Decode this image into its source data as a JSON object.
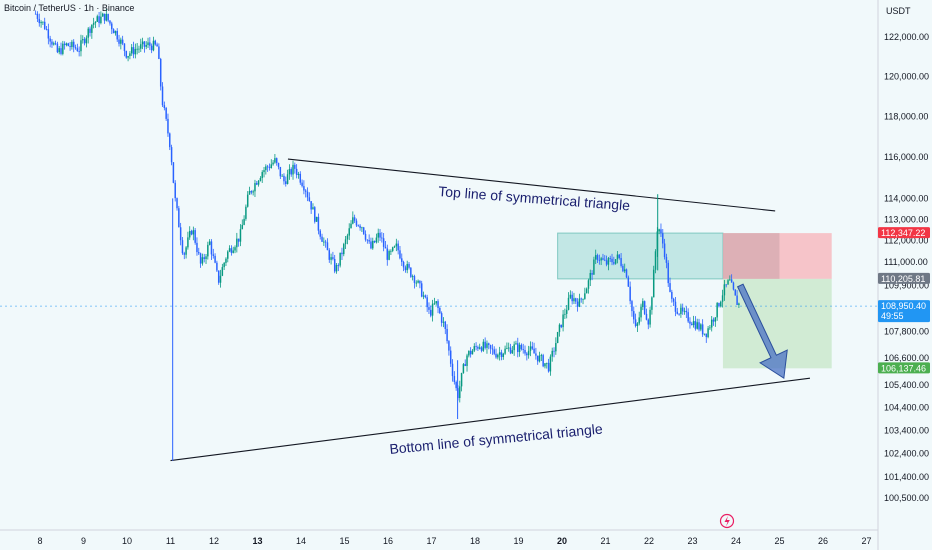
{
  "header": {
    "title": "Bitcoin / TetherUS · 1h · Binance",
    "currency": "USDT"
  },
  "badges": {
    "stop": "112,347.22",
    "entry": "110,205.81",
    "last": "108,950.40",
    "countdown": "49:55",
    "target": "106,137.46"
  },
  "annotations": {
    "top_line": "Top line of symmetrical triangle",
    "bottom_line": "Bottom line of symmetrical triangle"
  },
  "colors": {
    "up": "#089981",
    "down": "#2962ff",
    "wick_up": "#1e88e5",
    "bg": "#f1f9fb",
    "stop_zone": "#f7b6bd",
    "target_zone": "#c5e6c7",
    "entry_zone": "#b2e0de",
    "badge_red": "#f23645",
    "badge_gray": "#6f7885",
    "badge_blue": "#2196f3",
    "badge_green": "#4caf50",
    "arrow": "#4a72c4"
  },
  "chart_data": {
    "type": "candlestick",
    "title": "Bitcoin / TetherUS · 1h · Binance",
    "xlabel": "",
    "ylabel": "USDT",
    "ylim": [
      100000,
      123500
    ],
    "y_scale": "log",
    "grid": false,
    "x_ticks": [
      {
        "label": "8",
        "day": 8
      },
      {
        "label": "9",
        "day": 9
      },
      {
        "label": "10",
        "day": 10
      },
      {
        "label": "11",
        "day": 11
      },
      {
        "label": "12",
        "day": 12
      },
      {
        "label": "13",
        "day": 13,
        "bold": true
      },
      {
        "label": "14",
        "day": 14
      },
      {
        "label": "15",
        "day": 15
      },
      {
        "label": "16",
        "day": 16
      },
      {
        "label": "17",
        "day": 17
      },
      {
        "label": "18",
        "day": 18
      },
      {
        "label": "19",
        "day": 19
      },
      {
        "label": "20",
        "day": 20,
        "bold": true
      },
      {
        "label": "21",
        "day": 21
      },
      {
        "label": "22",
        "day": 22
      },
      {
        "label": "23",
        "day": 23
      },
      {
        "label": "24",
        "day": 24
      },
      {
        "label": "25",
        "day": 25
      },
      {
        "label": "26",
        "day": 26
      },
      {
        "label": "27",
        "day": 27
      }
    ],
    "y_ticks": [
      "122,000.00",
      "120,000.00",
      "118,000.00",
      "116,000.00",
      "114,000.00",
      "113,000.00",
      "112,000.00",
      "111,000.00",
      "109,900.00",
      "107,800.00",
      "106,600.00",
      "105,400.00",
      "104,400.00",
      "103,400.00",
      "102,400.00",
      "101,400.00",
      "100,500.00"
    ],
    "price_path": [
      {
        "day": 7.9,
        "price": 123200
      },
      {
        "day": 8.1,
        "price": 122600
      },
      {
        "day": 8.4,
        "price": 121200
      },
      {
        "day": 8.6,
        "price": 121600
      },
      {
        "day": 8.9,
        "price": 121400
      },
      {
        "day": 9.2,
        "price": 122700
      },
      {
        "day": 9.5,
        "price": 123100
      },
      {
        "day": 9.8,
        "price": 122000
      },
      {
        "day": 10.0,
        "price": 121100
      },
      {
        "day": 10.2,
        "price": 121400
      },
      {
        "day": 10.5,
        "price": 121600
      },
      {
        "day": 10.7,
        "price": 121500
      },
      {
        "day": 10.8,
        "price": 118900
      },
      {
        "day": 11.0,
        "price": 116500
      },
      {
        "day": 11.1,
        "price": 114000
      },
      {
        "day": 11.3,
        "price": 111300
      },
      {
        "day": 11.5,
        "price": 112600
      },
      {
        "day": 11.7,
        "price": 110800
      },
      {
        "day": 11.9,
        "price": 111900
      },
      {
        "day": 12.1,
        "price": 110100
      },
      {
        "day": 12.3,
        "price": 111400
      },
      {
        "day": 12.6,
        "price": 112200
      },
      {
        "day": 12.8,
        "price": 114200
      },
      {
        "day": 13.1,
        "price": 115300
      },
      {
        "day": 13.4,
        "price": 115800
      },
      {
        "day": 13.6,
        "price": 114800
      },
      {
        "day": 13.85,
        "price": 115500
      },
      {
        "day": 14.1,
        "price": 114500
      },
      {
        "day": 14.4,
        "price": 112600
      },
      {
        "day": 14.6,
        "price": 111500
      },
      {
        "day": 14.8,
        "price": 110600
      },
      {
        "day": 15.0,
        "price": 111800
      },
      {
        "day": 15.2,
        "price": 113000
      },
      {
        "day": 15.4,
        "price": 112700
      },
      {
        "day": 15.6,
        "price": 111600
      },
      {
        "day": 15.8,
        "price": 112300
      },
      {
        "day": 16.0,
        "price": 111200
      },
      {
        "day": 16.2,
        "price": 111700
      },
      {
        "day": 16.4,
        "price": 110800
      },
      {
        "day": 16.6,
        "price": 110300
      },
      {
        "day": 16.8,
        "price": 109500
      },
      {
        "day": 16.95,
        "price": 108600
      },
      {
        "day": 17.1,
        "price": 109100
      },
      {
        "day": 17.3,
        "price": 108000
      },
      {
        "day": 17.5,
        "price": 105800
      },
      {
        "day": 17.6,
        "price": 104900
      },
      {
        "day": 17.8,
        "price": 106700
      },
      {
        "day": 18.1,
        "price": 107200
      },
      {
        "day": 18.5,
        "price": 106800
      },
      {
        "day": 18.9,
        "price": 107100
      },
      {
        "day": 19.3,
        "price": 106900
      },
      {
        "day": 19.7,
        "price": 106200
      },
      {
        "day": 20.0,
        "price": 108300
      },
      {
        "day": 20.2,
        "price": 109400
      },
      {
        "day": 20.4,
        "price": 109100
      },
      {
        "day": 20.6,
        "price": 110000
      },
      {
        "day": 20.8,
        "price": 111300
      },
      {
        "day": 21.0,
        "price": 110900
      },
      {
        "day": 21.3,
        "price": 111200
      },
      {
        "day": 21.5,
        "price": 110400
      },
      {
        "day": 21.6,
        "price": 108800
      },
      {
        "day": 21.7,
        "price": 107800
      },
      {
        "day": 21.85,
        "price": 109100
      },
      {
        "day": 22.0,
        "price": 108200
      },
      {
        "day": 22.1,
        "price": 110200
      },
      {
        "day": 22.2,
        "price": 112800
      },
      {
        "day": 22.35,
        "price": 111600
      },
      {
        "day": 22.5,
        "price": 109200
      },
      {
        "day": 22.7,
        "price": 108700
      },
      {
        "day": 22.9,
        "price": 108400
      },
      {
        "day": 23.1,
        "price": 108100
      },
      {
        "day": 23.3,
        "price": 107700
      },
      {
        "day": 23.5,
        "price": 108500
      },
      {
        "day": 23.7,
        "price": 109600
      },
      {
        "day": 23.85,
        "price": 110100
      },
      {
        "day": 24.0,
        "price": 109200
      },
      {
        "day": 24.1,
        "price": 108950
      }
    ],
    "trendlines": [
      {
        "name": "top",
        "from": {
          "day": 13.7,
          "price": 115900
        },
        "to": {
          "day": 24.9,
          "price": 113400
        }
      },
      {
        "name": "bottom",
        "from": {
          "day": 11.0,
          "price": 102100
        },
        "to": {
          "day": 25.7,
          "price": 105700
        }
      }
    ],
    "zones": {
      "entry_box": {
        "from_day": 19.9,
        "to_day": 23.7,
        "top": 112347.22,
        "bottom": 110205.81
      },
      "stop_box": {
        "from_day": 23.7,
        "to_day": 26.2,
        "top": 112347.22,
        "bottom": 110205.81
      },
      "target_box": {
        "from_day": 23.7,
        "to_day": 26.2,
        "top": 110205.81,
        "bottom": 106137.46
      }
    },
    "arrow": {
      "from": {
        "day": 24.1,
        "price": 109900
      },
      "to": {
        "day": 25.1,
        "price": 105700
      }
    },
    "current_price": 108950.4
  }
}
